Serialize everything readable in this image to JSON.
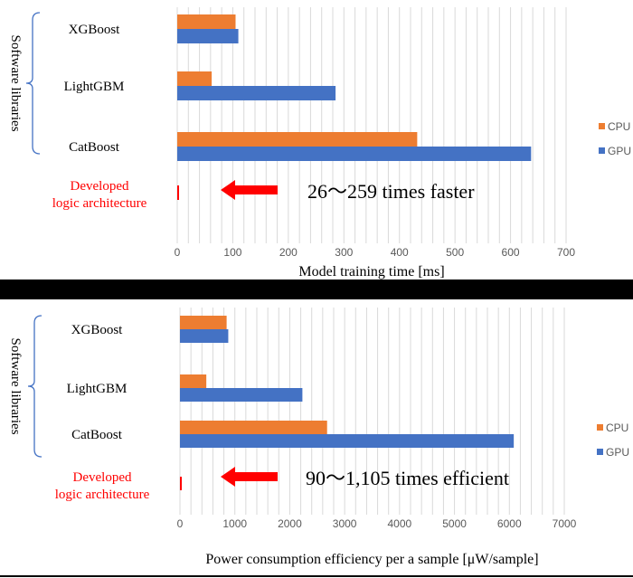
{
  "colors": {
    "cpu": "#ED7D31",
    "gpu": "#4472C4",
    "developed": "#FF0000",
    "bracket": "#4472C4",
    "divider": "#000000",
    "grid": "#D9D9D9"
  },
  "chart_data": [
    {
      "type": "bar",
      "orientation": "horizontal",
      "categories": [
        "XGBoost",
        "LightGBM",
        "CatBoost",
        "Developed logic architecture"
      ],
      "category_lines": [
        [
          "XGBoost"
        ],
        [
          "LightGBM"
        ],
        [
          "CatBoost"
        ],
        [
          "Developed",
          "logic architecture"
        ]
      ],
      "series": [
        {
          "name": "CPU",
          "values": [
            105,
            62,
            432,
            null
          ]
        },
        {
          "name": "GPU",
          "values": [
            110,
            285,
            637,
            3
          ]
        }
      ],
      "xlabel": "Model training time [ms]",
      "xlim": [
        0,
        700
      ],
      "xticks": [
        0,
        100,
        200,
        300,
        400,
        500,
        600,
        700
      ],
      "group_label": "Software libraries",
      "annotation": "26〜259 times faster",
      "legend": [
        "CPU",
        "GPU"
      ],
      "legend_position": "right",
      "grid": true
    },
    {
      "type": "bar",
      "orientation": "horizontal",
      "categories": [
        "XGBoost",
        "LightGBM",
        "CatBoost",
        "Developed logic architecture"
      ],
      "category_lines": [
        [
          "XGBoost"
        ],
        [
          "LightGBM"
        ],
        [
          "CatBoost"
        ],
        [
          "Developed",
          "logic architecture"
        ]
      ],
      "series": [
        {
          "name": "CPU",
          "values": [
            850,
            480,
            2680,
            null
          ]
        },
        {
          "name": "GPU",
          "values": [
            880,
            2230,
            6080,
            5
          ]
        }
      ],
      "xlabel": "Power consumption efficiency per a sample [μW/sample]",
      "xlim": [
        0,
        7000
      ],
      "xticks": [
        0,
        1000,
        2000,
        3000,
        4000,
        5000,
        6000,
        7000
      ],
      "group_label": "Software libraries",
      "annotation": "90〜1,105 times efficient",
      "legend": [
        "CPU",
        "GPU"
      ],
      "legend_position": "right",
      "grid": true
    }
  ]
}
